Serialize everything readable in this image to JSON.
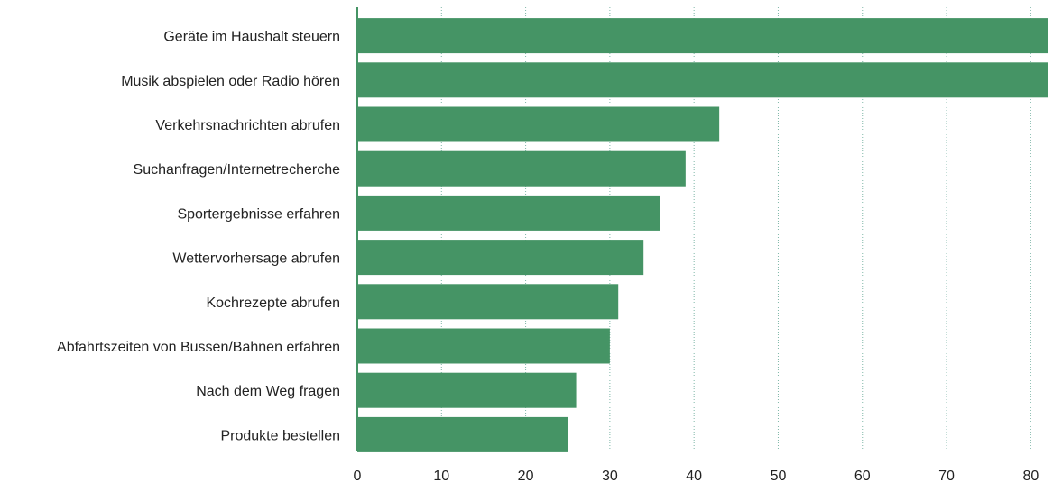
{
  "chart_data": {
    "type": "bar",
    "orientation": "horizontal",
    "categories": [
      "Geräte im Haushalt steuern",
      "Musik abspielen oder Radio hören",
      "Verkehrsnachrichten abrufen",
      "Suchanfragen/Internetrecherche",
      "Sportergebnisse erfahren",
      "Wettervorhersage abrufen",
      "Kochrezepte abrufen",
      "Abfahrtszeiten von Bussen/Bahnen erfahren",
      "Nach dem Weg fragen",
      "Produkte bestellen"
    ],
    "values": [
      82,
      82,
      43,
      39,
      36,
      34,
      31,
      30,
      26,
      25
    ],
    "xlim": [
      0,
      82
    ],
    "xticks": [
      "0",
      "10",
      "20",
      "30",
      "40",
      "50",
      "60",
      "70",
      "80"
    ],
    "grid": true,
    "colors": {
      "bar": "#459465",
      "axis": "#459465",
      "grid": "#7fb7a8"
    }
  }
}
